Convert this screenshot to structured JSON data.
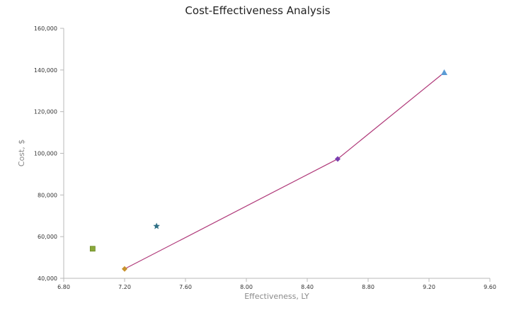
{
  "chart_data": {
    "type": "scatter",
    "title": "Cost-Effectiveness Analysis",
    "xlabel": "Effectiveness, LY",
    "ylabel": "Cost, $",
    "xlim": [
      6.8,
      9.6
    ],
    "ylim": [
      40000,
      160000
    ],
    "x_ticks": [
      "6.80",
      "7.20",
      "7.60",
      "8.00",
      "8.40",
      "8.80",
      "9.20",
      "9.60"
    ],
    "y_ticks": [
      "40,000",
      "60,000",
      "80,000",
      "100,000",
      "120,000",
      "140,000",
      "160,000"
    ],
    "grid": false,
    "points": [
      {
        "x": 6.99,
        "y": 54200,
        "marker": "square",
        "color": "#8aa83a"
      },
      {
        "x": 7.2,
        "y": 44500,
        "marker": "diamond",
        "color": "#c8922e"
      },
      {
        "x": 7.41,
        "y": 65000,
        "marker": "star",
        "color": "#2e6f85"
      },
      {
        "x": 8.6,
        "y": 97300,
        "marker": "diamond",
        "color": "#7a3fb0"
      },
      {
        "x": 9.3,
        "y": 138800,
        "marker": "triangle",
        "color": "#5b9bd5"
      }
    ],
    "frontier": {
      "color": "#b03a7a",
      "points": [
        {
          "x": 7.2,
          "y": 44500
        },
        {
          "x": 8.6,
          "y": 97300
        },
        {
          "x": 9.3,
          "y": 138800
        }
      ]
    }
  }
}
